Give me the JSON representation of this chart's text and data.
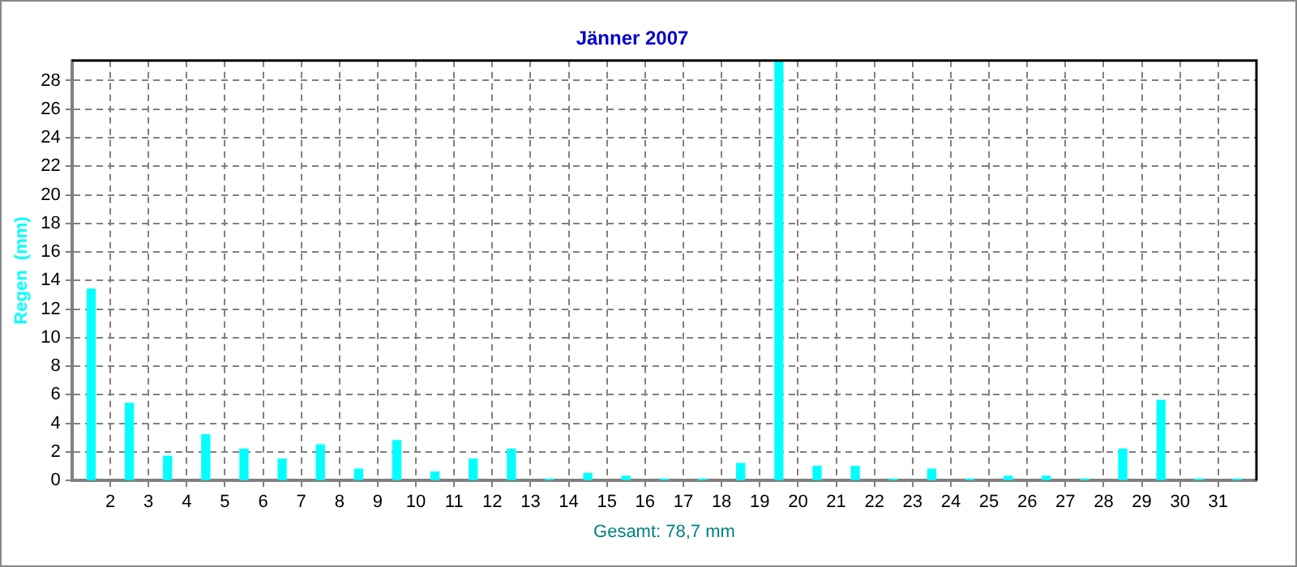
{
  "chart_data": {
    "type": "bar",
    "title": "Jänner 2007",
    "ylabel": "Regen  (mm)",
    "xlabel": "Gesamt: 78,7 mm",
    "x": [
      1.5,
      2.5,
      3.5,
      4.5,
      5.5,
      6.5,
      7.5,
      8.5,
      9.5,
      10.5,
      11.5,
      12.5,
      13.5,
      14.5,
      15.5,
      16.5,
      17.5,
      18.5,
      19.5,
      20.5,
      21.5,
      22.5,
      23.5,
      24.5,
      25.5,
      26.5,
      27.5,
      28.5,
      29.5,
      30.5,
      31.5
    ],
    "values": [
      13.4,
      5.4,
      1.7,
      3.2,
      2.2,
      1.5,
      2.5,
      0.8,
      2.8,
      0.6,
      1.5,
      2.2,
      0.1,
      0.5,
      0.3,
      0.1,
      0.1,
      1.2,
      29.4,
      1.0,
      1.0,
      0.1,
      0.8,
      0.1,
      0.3,
      0.3,
      0.1,
      2.2,
      5.6,
      0.1,
      0.1
    ],
    "color": "#00ffff",
    "xlim": [
      1,
      32
    ],
    "xticks": [
      2,
      3,
      4,
      5,
      6,
      7,
      8,
      9,
      10,
      11,
      12,
      13,
      14,
      15,
      16,
      17,
      18,
      19,
      20,
      21,
      22,
      23,
      24,
      25,
      26,
      27,
      28,
      29,
      30,
      31
    ],
    "ylim": [
      0,
      29.4
    ],
    "yticks": [
      0,
      2,
      4,
      6,
      8,
      10,
      12,
      14,
      16,
      18,
      20,
      22,
      24,
      26,
      28
    ],
    "grid": true,
    "legend": false
  }
}
